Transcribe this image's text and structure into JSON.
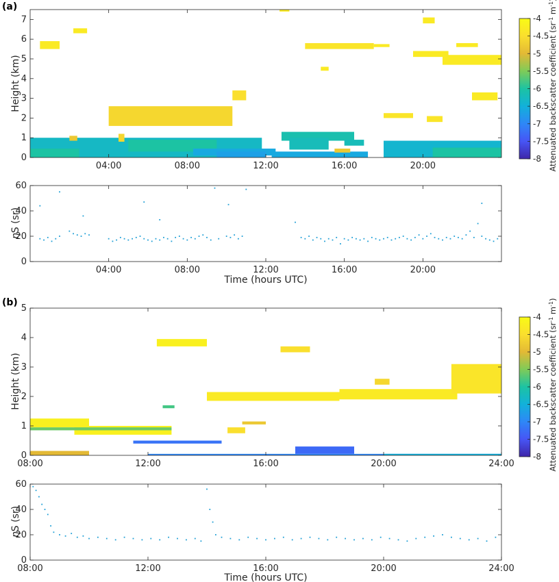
{
  "figure": {
    "panel_a_label": "(a)",
    "panel_b_label": "(b)",
    "height_ylabel": "Height (km)",
    "etaS_ylabel_sym": "η",
    "etaS_ylabel_rest": "S (sr)",
    "xlabel": "Time (hours UTC)",
    "colorbar_label": "Attenuated backscatter coefficient (sr",
    "colorbar_label_mid": "m",
    "colorbar_sup": "-1",
    "colorbar_close": ")",
    "colormap": [
      "#3e26a8",
      "#4755f5",
      "#2e87f7",
      "#12b1da",
      "#1cc3a3",
      "#7fcb58",
      "#e3b935",
      "#fadf2e",
      "#f9fb15"
    ]
  },
  "chart_data": [
    {
      "id": "a-backscatter",
      "type": "heatmap",
      "ylabel": "Height (km)",
      "x_range_hours": [
        0,
        24
      ],
      "ylim": [
        0,
        7.5
      ],
      "xticks": [
        "04:00",
        "08:00",
        "12:00",
        "16:00",
        "20:00"
      ],
      "xtick_hours": [
        4,
        8,
        12,
        16,
        20
      ],
      "yticks": [
        0,
        1,
        2,
        3,
        4,
        5,
        6,
        7
      ],
      "colorbar": {
        "ticks": [
          "-4",
          "-4.5",
          "-5",
          "-5.5",
          "-6",
          "-6.5",
          "-7",
          "-7.5",
          "-8"
        ],
        "range": [
          -8,
          -4
        ]
      },
      "regions": [
        {
          "t0": 0.0,
          "t1": 11.8,
          "h0": 0.0,
          "h1": 1.0,
          "value": -6.3
        },
        {
          "t0": 0.0,
          "t1": 2.5,
          "h0": 0.0,
          "h1": 0.45,
          "value": -6.0
        },
        {
          "t0": 5.0,
          "t1": 9.5,
          "h0": 0.3,
          "h1": 0.9,
          "value": -6.0
        },
        {
          "t0": 2.0,
          "t1": 2.4,
          "h0": 0.85,
          "h1": 1.1,
          "value": -4.8
        },
        {
          "t0": 4.5,
          "t1": 4.8,
          "h0": 0.8,
          "h1": 1.2,
          "value": -4.6
        },
        {
          "t0": 8.3,
          "t1": 12.5,
          "h0": 0.1,
          "h1": 0.45,
          "value": -6.6
        },
        {
          "t0": 9.5,
          "t1": 12.0,
          "h0": 0.0,
          "h1": 0.3,
          "value": -6.7
        },
        {
          "t0": 12.8,
          "t1": 16.5,
          "h0": 0.85,
          "h1": 1.3,
          "value": -6.1
        },
        {
          "t0": 13.2,
          "t1": 15.2,
          "h0": 0.4,
          "h1": 1.0,
          "value": -6.2
        },
        {
          "t0": 12.3,
          "t1": 17.2,
          "h0": 0.0,
          "h1": 0.3,
          "value": -6.6
        },
        {
          "t0": 15.5,
          "t1": 16.3,
          "h0": 0.25,
          "h1": 0.45,
          "value": -4.8
        },
        {
          "t0": 16.0,
          "t1": 17.0,
          "h0": 0.6,
          "h1": 0.9,
          "value": -6.2
        },
        {
          "t0": 18.0,
          "t1": 24.0,
          "h0": 0.0,
          "h1": 0.85,
          "value": -6.4
        },
        {
          "t0": 20.5,
          "t1": 24.0,
          "h0": 0.0,
          "h1": 0.5,
          "value": -6.0
        },
        {
          "t0": 4.0,
          "t1": 10.3,
          "h0": 1.6,
          "h1": 2.6,
          "value": -4.6
        },
        {
          "t0": 10.3,
          "t1": 11.0,
          "h0": 2.9,
          "h1": 3.4,
          "value": -4.5
        },
        {
          "t0": 0.5,
          "t1": 1.5,
          "h0": 5.5,
          "h1": 5.9,
          "value": -4.3
        },
        {
          "t0": 2.2,
          "t1": 2.9,
          "h0": 6.3,
          "h1": 6.55,
          "value": -4.3
        },
        {
          "t0": 14.0,
          "t1": 17.5,
          "h0": 5.5,
          "h1": 5.8,
          "value": -4.4
        },
        {
          "t0": 17.5,
          "t1": 18.3,
          "h0": 5.6,
          "h1": 5.75,
          "value": -4.3
        },
        {
          "t0": 19.5,
          "t1": 21.3,
          "h0": 5.1,
          "h1": 5.4,
          "value": -4.3
        },
        {
          "t0": 21.0,
          "t1": 24.0,
          "h0": 4.7,
          "h1": 5.2,
          "value": -4.3
        },
        {
          "t0": 21.7,
          "t1": 22.8,
          "h0": 5.6,
          "h1": 5.8,
          "value": -4.3
        },
        {
          "t0": 20.0,
          "t1": 20.6,
          "h0": 6.8,
          "h1": 7.1,
          "value": -4.3
        },
        {
          "t0": 18.0,
          "t1": 19.5,
          "h0": 2.0,
          "h1": 2.25,
          "value": -4.4
        },
        {
          "t0": 20.2,
          "t1": 21.0,
          "h0": 1.8,
          "h1": 2.1,
          "value": -4.4
        },
        {
          "t0": 22.5,
          "t1": 23.8,
          "h0": 2.9,
          "h1": 3.3,
          "value": -4.3
        },
        {
          "t0": 14.8,
          "t1": 15.2,
          "h0": 4.4,
          "h1": 4.6,
          "value": -4.3
        },
        {
          "t0": 12.7,
          "t1": 13.2,
          "h0": 7.4,
          "h1": 7.5,
          "value": -4.3
        }
      ]
    },
    {
      "id": "a-etaS",
      "type": "scatter",
      "ylabel": "ηS (sr)",
      "x_range_hours": [
        0,
        24
      ],
      "ylim": [
        0,
        60
      ],
      "xticks": [
        "04:00",
        "08:00",
        "12:00",
        "16:00",
        "20:00"
      ],
      "xtick_hours": [
        4,
        8,
        12,
        16,
        20
      ],
      "yticks": [
        0,
        20,
        40,
        60
      ],
      "color": "#1f9fd6",
      "x": [
        0.5,
        0.7,
        0.9,
        1.1,
        1.3,
        1.5,
        2.0,
        2.2,
        2.4,
        2.6,
        2.8,
        3.0,
        4.0,
        4.2,
        4.4,
        4.6,
        4.8,
        5.0,
        5.2,
        5.4,
        5.6,
        5.8,
        6.0,
        6.2,
        6.4,
        6.6,
        6.8,
        7.0,
        7.2,
        7.4,
        7.6,
        7.8,
        8.0,
        8.2,
        8.4,
        8.6,
        8.8,
        9.0,
        9.2,
        9.6,
        10.0,
        10.2,
        10.4,
        10.6,
        10.8,
        13.8,
        14.0,
        14.2,
        14.4,
        14.6,
        14.8,
        15.0,
        15.2,
        15.4,
        15.6,
        15.8,
        16.0,
        16.2,
        16.4,
        16.6,
        16.8,
        17.0,
        17.2,
        17.4,
        17.6,
        17.8,
        18.0,
        18.2,
        18.4,
        18.6,
        18.8,
        19.0,
        19.2,
        19.4,
        19.6,
        19.8,
        20.0,
        20.2,
        20.4,
        20.6,
        20.8,
        21.0,
        21.2,
        21.4,
        21.6,
        21.8,
        22.0,
        22.2,
        22.4,
        22.6,
        22.8,
        23.0,
        23.2,
        23.4,
        23.6,
        23.8,
        0.5,
        1.5,
        2.7,
        5.8,
        6.6,
        9.4,
        10.1,
        11.0,
        13.5,
        23.0
      ],
      "y": [
        18,
        17,
        19,
        16,
        18,
        20,
        24,
        22,
        21,
        20,
        22,
        21,
        18,
        16,
        17,
        19,
        18,
        17,
        18,
        19,
        20,
        18,
        17,
        16,
        18,
        17,
        19,
        18,
        16,
        19,
        20,
        18,
        17,
        19,
        18,
        20,
        21,
        19,
        17,
        18,
        20,
        19,
        21,
        18,
        20,
        19,
        18,
        20,
        17,
        19,
        18,
        16,
        18,
        17,
        19,
        14,
        18,
        17,
        19,
        18,
        17,
        18,
        16,
        19,
        18,
        17,
        18,
        19,
        17,
        18,
        19,
        20,
        18,
        17,
        19,
        21,
        18,
        20,
        22,
        19,
        18,
        17,
        19,
        18,
        20,
        19,
        18,
        21,
        24,
        19,
        30,
        20,
        18,
        17,
        16,
        18,
        44,
        55,
        36,
        47,
        33,
        58,
        45,
        57,
        31,
        46
      ]
    },
    {
      "id": "b-backscatter",
      "type": "heatmap",
      "ylabel": "Height (km)",
      "x_range_hours": [
        8,
        24
      ],
      "ylim": [
        0,
        5
      ],
      "xticks": [
        "08:00",
        "12:00",
        "16:00",
        "20:00",
        "24:00"
      ],
      "xtick_hours": [
        8,
        12,
        16,
        20,
        24
      ],
      "yticks": [
        0,
        1,
        2,
        3,
        4,
        5
      ],
      "colorbar": {
        "ticks": [
          "-4",
          "-4.5",
          "-5",
          "-5.5",
          "-6",
          "-6.5",
          "-7",
          "-7.5",
          "-8"
        ],
        "range": [
          -8,
          -4
        ]
      },
      "regions": [
        {
          "t0": 8.0,
          "t1": 10.0,
          "h0": 0.95,
          "h1": 1.25,
          "value": -4.2
        },
        {
          "t0": 9.5,
          "t1": 12.8,
          "h0": 0.7,
          "h1": 1.0,
          "value": -4.2
        },
        {
          "t0": 8.0,
          "t1": 12.8,
          "h0": 0.85,
          "h1": 0.95,
          "value": -5.6
        },
        {
          "t0": 12.3,
          "t1": 14.0,
          "h0": 3.7,
          "h1": 3.95,
          "value": -4.2
        },
        {
          "t0": 14.0,
          "t1": 18.5,
          "h0": 1.85,
          "h1": 2.15,
          "value": -4.3
        },
        {
          "t0": 18.5,
          "t1": 22.5,
          "h0": 1.9,
          "h1": 2.25,
          "value": -4.3
        },
        {
          "t0": 22.3,
          "t1": 24.0,
          "h0": 2.1,
          "h1": 3.1,
          "value": -4.4
        },
        {
          "t0": 14.7,
          "t1": 15.3,
          "h0": 0.75,
          "h1": 0.95,
          "value": -4.5
        },
        {
          "t0": 15.2,
          "t1": 16.0,
          "h0": 1.05,
          "h1": 1.15,
          "value": -4.8
        },
        {
          "t0": 16.5,
          "t1": 17.5,
          "h0": 3.5,
          "h1": 3.7,
          "value": -4.5
        },
        {
          "t0": 19.7,
          "t1": 20.2,
          "h0": 2.4,
          "h1": 2.6,
          "value": -4.6
        },
        {
          "t0": 8.0,
          "t1": 10.0,
          "h0": 0.0,
          "h1": 0.15,
          "value": -5.0
        },
        {
          "t0": 11.5,
          "t1": 14.5,
          "h0": 0.4,
          "h1": 0.5,
          "value": -7.2
        },
        {
          "t0": 17.0,
          "t1": 19.0,
          "h0": 0.05,
          "h1": 0.3,
          "value": -7.3
        },
        {
          "t0": 12.0,
          "t1": 24.0,
          "h0": 0.0,
          "h1": 0.05,
          "value": -7.0
        },
        {
          "t0": 20.0,
          "t1": 24.0,
          "h0": 0.0,
          "h1": 0.05,
          "value": -6.5
        },
        {
          "t0": 12.5,
          "t1": 12.9,
          "h0": 1.6,
          "h1": 1.7,
          "value": -5.8
        }
      ]
    },
    {
      "id": "b-etaS",
      "type": "scatter",
      "ylabel": "ηS (sr)",
      "x_range_hours": [
        8,
        24
      ],
      "ylim": [
        0,
        60
      ],
      "xticks": [
        "08:00",
        "12:00",
        "16:00",
        "20:00",
        "24:00"
      ],
      "xtick_hours": [
        8,
        12,
        16,
        20,
        24
      ],
      "yticks": [
        0,
        20,
        40,
        60
      ],
      "color": "#1f9fd6",
      "x": [
        8.1,
        8.2,
        8.3,
        8.4,
        8.5,
        8.6,
        8.7,
        8.8,
        9.0,
        9.2,
        9.4,
        9.6,
        9.8,
        10.0,
        10.3,
        10.6,
        10.9,
        11.2,
        11.5,
        11.8,
        12.1,
        12.4,
        12.7,
        13.0,
        13.3,
        13.6,
        13.8,
        14.0,
        14.1,
        14.2,
        14.3,
        14.5,
        14.8,
        15.1,
        15.4,
        15.7,
        16.0,
        16.3,
        16.6,
        16.9,
        17.2,
        17.5,
        17.8,
        18.1,
        18.4,
        18.7,
        19.0,
        19.3,
        19.6,
        19.9,
        20.2,
        20.5,
        20.8,
        21.1,
        21.4,
        21.7,
        22.0,
        22.3,
        22.6,
        22.9,
        23.2,
        23.5,
        23.8
      ],
      "y": [
        58,
        55,
        50,
        44,
        40,
        36,
        27,
        22,
        20,
        19,
        21,
        18,
        19,
        17,
        18,
        17,
        16,
        18,
        17,
        16,
        17,
        16,
        18,
        17,
        16,
        17,
        15,
        56,
        40,
        30,
        20,
        18,
        17,
        16,
        18,
        17,
        16,
        17,
        18,
        16,
        17,
        18,
        17,
        16,
        18,
        17,
        16,
        17,
        16,
        18,
        17,
        16,
        15,
        17,
        18,
        19,
        20,
        18,
        17,
        16,
        17,
        15,
        18
      ]
    }
  ]
}
